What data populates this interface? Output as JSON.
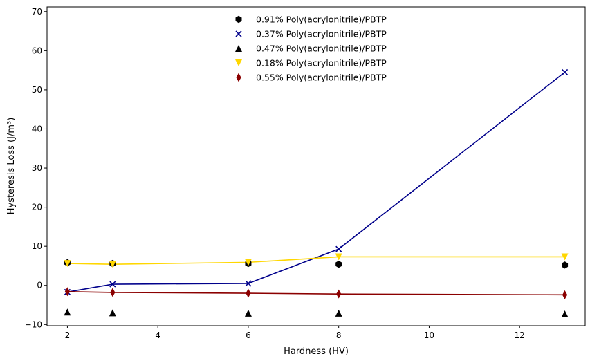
{
  "chart_data": {
    "type": "scatter",
    "title": "",
    "xlabel": "Hardness (HV)",
    "ylabel": "Hysteresis Loss (J/m³)",
    "xlim": [
      1.55,
      13.45
    ],
    "ylim": [
      -10.3,
      71.2
    ],
    "x_ticks": [
      2,
      4,
      6,
      8,
      10,
      12
    ],
    "y_ticks": [
      -10,
      0,
      10,
      20,
      30,
      40,
      50,
      60,
      70
    ],
    "legend_position": "top-center",
    "x": [
      2,
      3,
      6,
      8,
      13
    ],
    "series": [
      {
        "name": "0.91% Poly(acrylonitrile)/PBTP",
        "marker": "hexagon",
        "color": "#000000",
        "line": false,
        "values": [
          5.8,
          5.6,
          5.6,
          5.4,
          5.2
        ]
      },
      {
        "name": "0.37% Poly(acrylonitrile)/PBTP",
        "marker": "x",
        "color": "#00008b",
        "line": true,
        "values": [
          -1.7,
          0.3,
          0.5,
          9.3,
          54.5
        ]
      },
      {
        "name": "0.47% Poly(acrylonitrile)/PBTP",
        "marker": "triangle-up",
        "color": "#000000",
        "line": false,
        "values": [
          -6.8,
          -7.0,
          -7.1,
          -7.1,
          -7.3
        ]
      },
      {
        "name": "0.18% Poly(acrylonitrile)/PBTP",
        "marker": "triangle-down",
        "color": "#ffd700",
        "line": true,
        "values": [
          5.6,
          5.4,
          5.9,
          7.3,
          7.3
        ]
      },
      {
        "name": "0.55% Poly(acrylonitrile)/PBTP",
        "marker": "thin-diamond",
        "color": "#8b0000",
        "line": true,
        "values": [
          -1.6,
          -1.8,
          -2.0,
          -2.2,
          -2.4
        ]
      }
    ]
  }
}
